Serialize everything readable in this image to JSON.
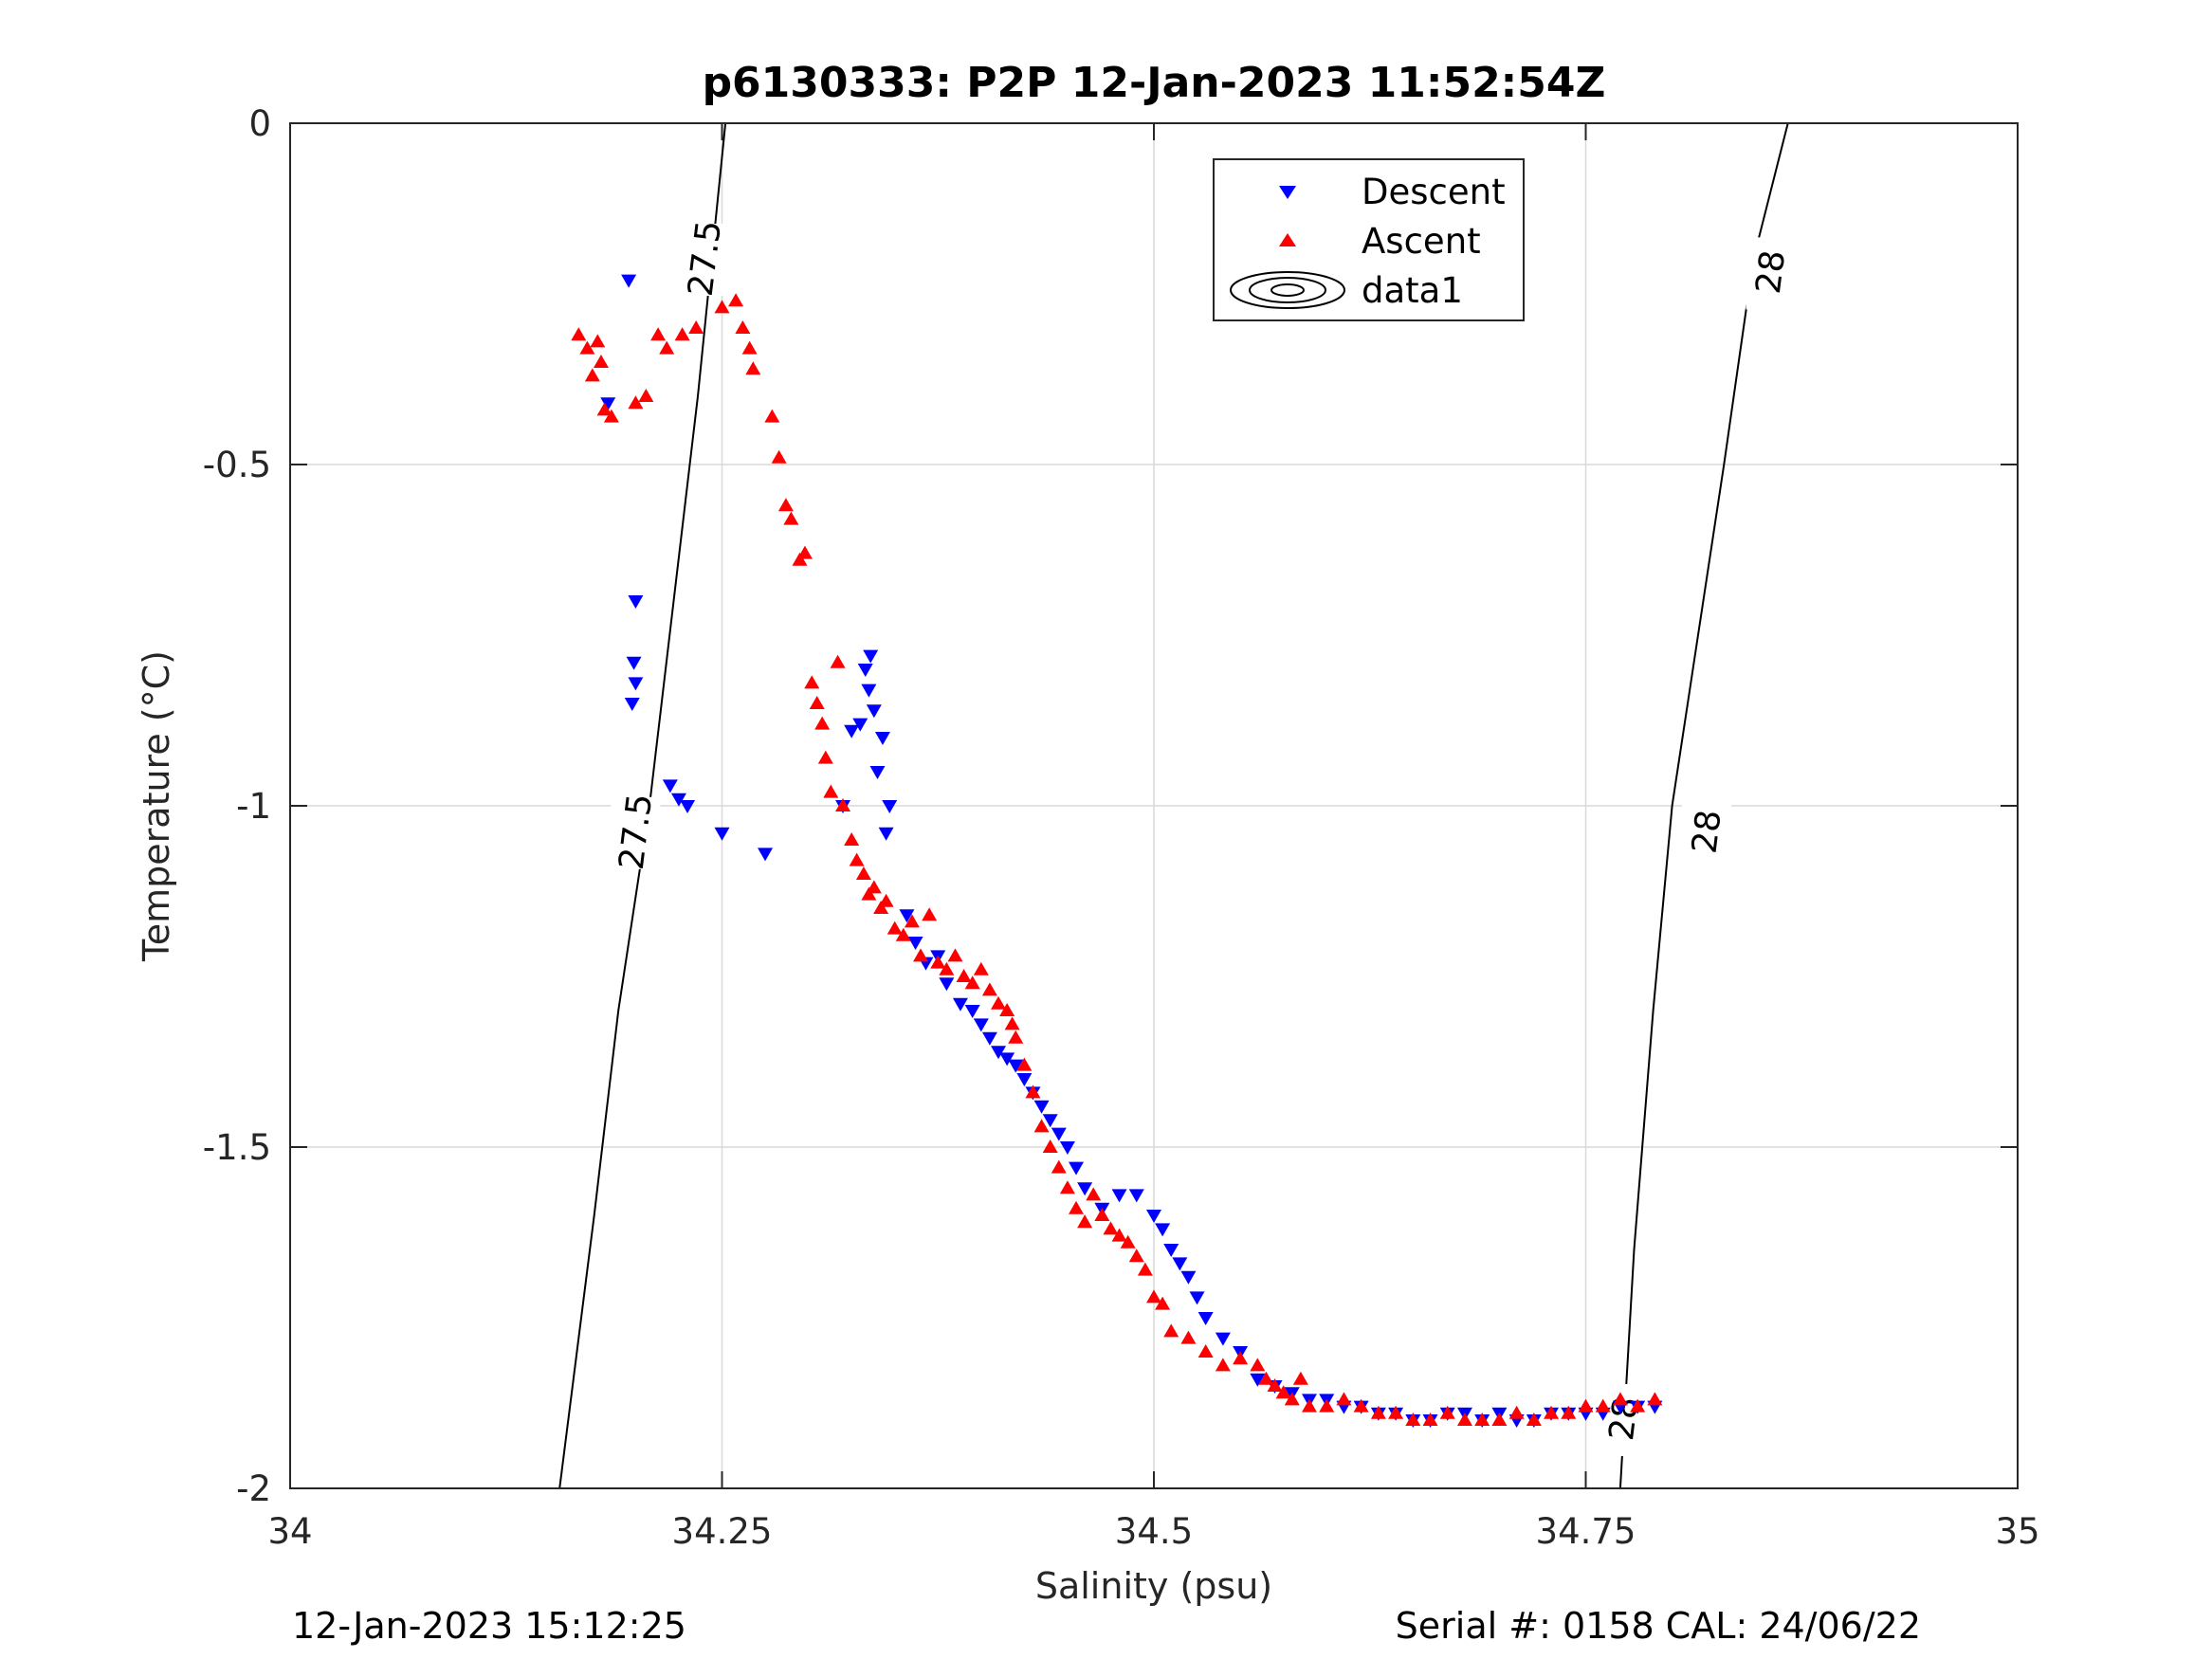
{
  "footer": {
    "left": "12-Jan-2023 15:12:25",
    "right": "Serial #: 0158  CAL: 24/06/22"
  },
  "chart_data": {
    "type": "scatter",
    "title": "p6130333: P2P 12-Jan-2023 11:52:54Z",
    "xlabel": "Salinity (psu)",
    "ylabel": "Temperature (°C)",
    "xlim": [
      34,
      35
    ],
    "ylim": [
      -2,
      0
    ],
    "x_ticks": [
      34,
      34.25,
      34.5,
      34.75,
      35
    ],
    "x_tick_labels": [
      "34",
      "34.25",
      "34.5",
      "34.75",
      "35"
    ],
    "y_ticks": [
      0,
      -0.5,
      -1,
      -1.5,
      -2
    ],
    "y_tick_labels": [
      "0",
      "-0.5",
      "-1",
      "-1.5",
      "-2"
    ],
    "grid": true,
    "legend": {
      "placement": "top-right",
      "entries": [
        "Descent",
        "Ascent",
        "data1"
      ]
    },
    "colors": {
      "descent": "#0000ff",
      "ascent": "#ff0000",
      "contour": "#000000",
      "grid": "#d9d9d9"
    },
    "contours": [
      {
        "label": "27.5",
        "points": [
          [
            34.156,
            -2.0
          ],
          [
            34.176,
            -1.6
          ],
          [
            34.19,
            -1.3
          ],
          [
            34.208,
            -1.0
          ],
          [
            34.222,
            -0.7
          ],
          [
            34.236,
            -0.4
          ],
          [
            34.252,
            0.0
          ]
        ],
        "label_positions": [
          [
            34.2,
            -1.04
          ],
          [
            34.24,
            -0.2
          ]
        ]
      },
      {
        "label": "28",
        "points": [
          [
            34.77,
            -2.0
          ],
          [
            34.778,
            -1.65
          ],
          [
            34.789,
            -1.3
          ],
          [
            34.8,
            -1.0
          ],
          [
            34.83,
            -0.5
          ],
          [
            34.847,
            -0.2
          ],
          [
            34.867,
            0.0
          ]
        ],
        "label_positions": [
          [
            34.772,
            -1.9
          ],
          [
            34.82,
            -1.04
          ],
          [
            34.857,
            -0.22
          ]
        ]
      }
    ],
    "series": [
      {
        "name": "Descent",
        "marker": "triangle-down",
        "x": [
          34.196,
          34.184,
          34.2,
          34.199,
          34.2,
          34.198,
          34.22,
          34.225,
          34.23,
          34.25,
          34.275,
          34.32,
          34.325,
          34.33,
          34.333,
          34.335,
          34.336,
          34.338,
          34.34,
          34.343,
          34.345,
          34.347,
          34.357,
          34.362,
          34.368,
          34.375,
          34.38,
          34.388,
          34.395,
          34.4,
          34.405,
          34.41,
          34.415,
          34.42,
          34.425,
          34.43,
          34.435,
          34.44,
          34.445,
          34.45,
          34.455,
          34.46,
          34.47,
          34.48,
          34.49,
          34.5,
          34.505,
          34.51,
          34.515,
          34.52,
          34.525,
          34.53,
          34.54,
          34.55,
          34.56,
          34.57,
          34.58,
          34.59,
          34.6,
          34.61,
          34.62,
          34.63,
          34.64,
          34.65,
          34.66,
          34.67,
          34.68,
          34.69,
          34.7,
          34.71,
          34.72,
          34.73,
          34.74,
          34.75,
          34.76,
          34.77,
          34.78,
          34.79
        ],
        "y": [
          -0.23,
          -0.41,
          -0.7,
          -0.79,
          -0.82,
          -0.85,
          -0.97,
          -0.99,
          -1.0,
          -1.04,
          -1.07,
          -1.0,
          -0.89,
          -0.88,
          -0.8,
          -0.83,
          -0.78,
          -0.86,
          -0.95,
          -0.9,
          -1.04,
          -1.0,
          -1.16,
          -1.2,
          -1.23,
          -1.22,
          -1.26,
          -1.29,
          -1.3,
          -1.32,
          -1.34,
          -1.36,
          -1.37,
          -1.38,
          -1.4,
          -1.42,
          -1.44,
          -1.46,
          -1.48,
          -1.5,
          -1.53,
          -1.56,
          -1.59,
          -1.57,
          -1.57,
          -1.6,
          -1.62,
          -1.65,
          -1.67,
          -1.69,
          -1.72,
          -1.75,
          -1.78,
          -1.8,
          -1.84,
          -1.85,
          -1.86,
          -1.87,
          -1.87,
          -1.88,
          -1.88,
          -1.89,
          -1.89,
          -1.9,
          -1.9,
          -1.89,
          -1.89,
          -1.9,
          -1.89,
          -1.9,
          -1.9,
          -1.89,
          -1.89,
          -1.89,
          -1.89,
          -1.88,
          -1.88,
          -1.88
        ]
      },
      {
        "name": "Ascent",
        "marker": "triangle-up",
        "x": [
          34.167,
          34.172,
          34.175,
          34.178,
          34.18,
          34.182,
          34.186,
          34.2,
          34.206,
          34.213,
          34.218,
          34.227,
          34.235,
          34.25,
          34.258,
          34.262,
          34.266,
          34.268,
          34.279,
          34.283,
          34.287,
          34.29,
          34.295,
          34.298,
          34.302,
          34.305,
          34.308,
          34.31,
          34.313,
          34.317,
          34.32,
          34.325,
          34.328,
          34.332,
          34.335,
          34.338,
          34.342,
          34.345,
          34.35,
          34.355,
          34.36,
          34.365,
          34.37,
          34.375,
          34.38,
          34.385,
          34.39,
          34.395,
          34.4,
          34.405,
          34.41,
          34.415,
          34.418,
          34.42,
          34.425,
          34.43,
          34.435,
          34.44,
          34.445,
          34.45,
          34.455,
          34.46,
          34.465,
          34.47,
          34.475,
          34.48,
          34.485,
          34.49,
          34.495,
          34.5,
          34.505,
          34.51,
          34.52,
          34.53,
          34.54,
          34.55,
          34.56,
          34.565,
          34.57,
          34.575,
          34.58,
          34.585,
          34.59,
          34.6,
          34.61,
          34.62,
          34.63,
          34.64,
          34.65,
          34.66,
          34.67,
          34.68,
          34.69,
          34.7,
          34.71,
          34.72,
          34.73,
          34.74,
          34.75,
          34.76,
          34.77,
          34.78,
          34.79
        ],
        "y": [
          -0.31,
          -0.33,
          -0.37,
          -0.32,
          -0.35,
          -0.42,
          -0.43,
          -0.41,
          -0.4,
          -0.31,
          -0.33,
          -0.31,
          -0.3,
          -0.27,
          -0.26,
          -0.3,
          -0.33,
          -0.36,
          -0.43,
          -0.49,
          -0.56,
          -0.58,
          -0.64,
          -0.63,
          -0.82,
          -0.85,
          -0.88,
          -0.93,
          -0.98,
          -0.79,
          -1.0,
          -1.05,
          -1.08,
          -1.1,
          -1.13,
          -1.12,
          -1.15,
          -1.14,
          -1.18,
          -1.19,
          -1.17,
          -1.22,
          -1.16,
          -1.23,
          -1.24,
          -1.22,
          -1.25,
          -1.26,
          -1.24,
          -1.27,
          -1.29,
          -1.3,
          -1.32,
          -1.34,
          -1.38,
          -1.42,
          -1.47,
          -1.5,
          -1.53,
          -1.56,
          -1.59,
          -1.61,
          -1.57,
          -1.6,
          -1.62,
          -1.63,
          -1.64,
          -1.66,
          -1.68,
          -1.72,
          -1.73,
          -1.77,
          -1.78,
          -1.8,
          -1.82,
          -1.81,
          -1.82,
          -1.84,
          -1.85,
          -1.86,
          -1.87,
          -1.84,
          -1.88,
          -1.88,
          -1.87,
          -1.88,
          -1.89,
          -1.89,
          -1.9,
          -1.9,
          -1.89,
          -1.9,
          -1.9,
          -1.9,
          -1.89,
          -1.9,
          -1.89,
          -1.89,
          -1.88,
          -1.88,
          -1.87,
          -1.88,
          -1.87
        ]
      }
    ]
  }
}
